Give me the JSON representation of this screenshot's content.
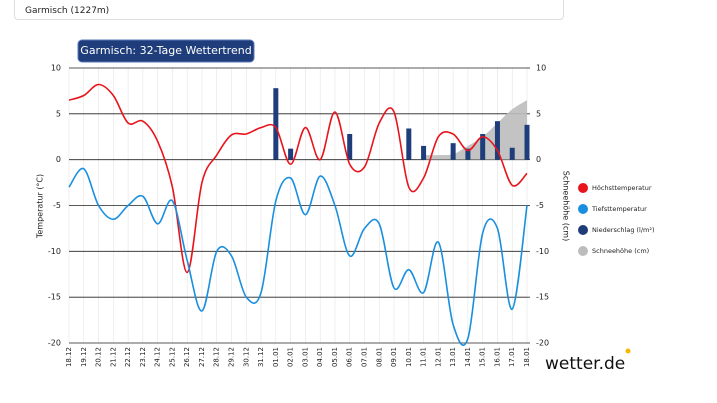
{
  "header": {
    "location": "Garmisch (1227m)"
  },
  "logo": "wetter.de",
  "chart_data": {
    "type": "line",
    "title": "Garmisch: 32-Tage Wettertrend",
    "y_label": "Temperatur (°C)",
    "y2_label": "Schneehöhe (cm)",
    "categories": [
      "18.12",
      "19.12",
      "20.12",
      "21.12",
      "22.12",
      "23.12",
      "24.12",
      "25.12",
      "26.12",
      "27.12",
      "28.12",
      "29.12",
      "30.12",
      "31.12",
      "01.01",
      "02.01",
      "03.01",
      "04.01",
      "05.01",
      "06.01",
      "07.01",
      "08.01",
      "09.01",
      "10.01",
      "11.01",
      "12.01",
      "13.01",
      "14.01",
      "15.01",
      "16.01",
      "17.01",
      "18.01"
    ],
    "ylim": [
      -20,
      10
    ],
    "yticks": [
      10,
      5,
      0,
      -5,
      -10,
      -15,
      -20
    ],
    "y2lim": [
      -20,
      10
    ],
    "y2ticks": [
      10,
      5,
      0,
      -5,
      -10,
      -15,
      -20
    ],
    "grid": true,
    "series": [
      {
        "name": "Höchsttemperatur",
        "color": "#e8141c",
        "type": "line",
        "values": [
          6.5,
          7,
          8.2,
          7,
          4,
          4.2,
          2,
          -3,
          -12.3,
          -2.5,
          0.5,
          2.7,
          2.8,
          3.5,
          3.5,
          -0.5,
          3.5,
          0,
          5.2,
          -0.5,
          -0.8,
          4,
          5.2,
          -3,
          -2,
          2.5,
          2.8,
          1,
          2.5,
          1,
          -2.8,
          -1.5
        ]
      },
      {
        "name": "Tiefsttemperatur",
        "color": "#1a8fe0",
        "type": "line",
        "values": [
          -3,
          -1,
          -5,
          -6.5,
          -5,
          -4,
          -7,
          -4.5,
          -11,
          -16.5,
          -10,
          -10.5,
          -15,
          -14.5,
          -4.5,
          -2,
          -6,
          -1.8,
          -5,
          -10.5,
          -7.5,
          -7,
          -14,
          -12,
          -14.5,
          -9,
          -18,
          -19.5,
          -8,
          -7.5,
          -16.3,
          -5
        ]
      },
      {
        "name": "Niederschlag (l/m²)",
        "color": "#1f3d7a",
        "type": "bar",
        "axis": "y2",
        "values": [
          null,
          null,
          null,
          null,
          null,
          null,
          null,
          null,
          null,
          null,
          null,
          null,
          null,
          null,
          7.8,
          1.2,
          null,
          null,
          null,
          2.8,
          null,
          null,
          null,
          3.4,
          1.5,
          null,
          1.8,
          1.2,
          2.8,
          4.2,
          1.3,
          3.8
        ]
      },
      {
        "name": "Schneehöhe (cm)",
        "color": "#bdbdbd",
        "type": "area",
        "axis": "y2",
        "values": [
          null,
          null,
          null,
          null,
          null,
          null,
          null,
          null,
          null,
          null,
          null,
          null,
          null,
          null,
          null,
          null,
          null,
          null,
          null,
          null,
          null,
          null,
          null,
          null,
          0.5,
          0.5,
          0.6,
          1.5,
          2.5,
          4,
          5.5,
          6.5
        ]
      }
    ]
  }
}
